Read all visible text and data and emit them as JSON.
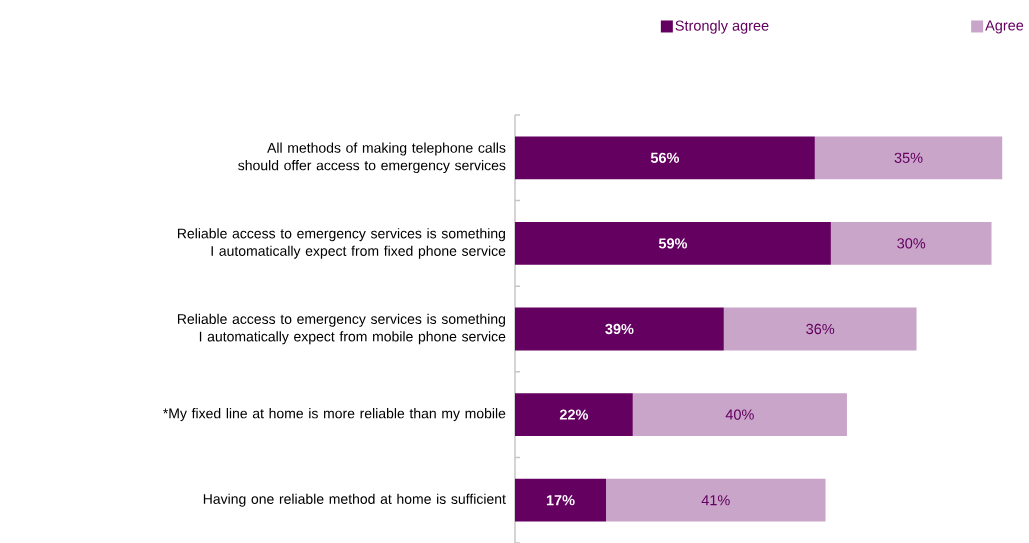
{
  "chart_data": {
    "type": "bar",
    "orientation": "horizontal",
    "stacked": true,
    "legend": "top right",
    "categories": [
      "All methods of making telephone calls should offer access to emergency services",
      "Reliable access to emergency services is something I automatically expect from fixed phone service",
      "Reliable access to emergency services is something I automatically expect from mobile phone service",
      "*My fixed line at home is more reliable than my mobile",
      "Having one reliable method at home is sufficient"
    ],
    "series": [
      {
        "name": "Strongly agree",
        "color": "#640060",
        "values": [
          56,
          59,
          39,
          22,
          17
        ],
        "value_labels": [
          "56%",
          "59%",
          "39%",
          "22%",
          "17%"
        ]
      },
      {
        "name": "Agree",
        "color": "#c9a5c9",
        "values": [
          35,
          30,
          36,
          40,
          41
        ],
        "value_labels": [
          "35%",
          "30%",
          "36%",
          "40%",
          "41%"
        ]
      }
    ]
  }
}
